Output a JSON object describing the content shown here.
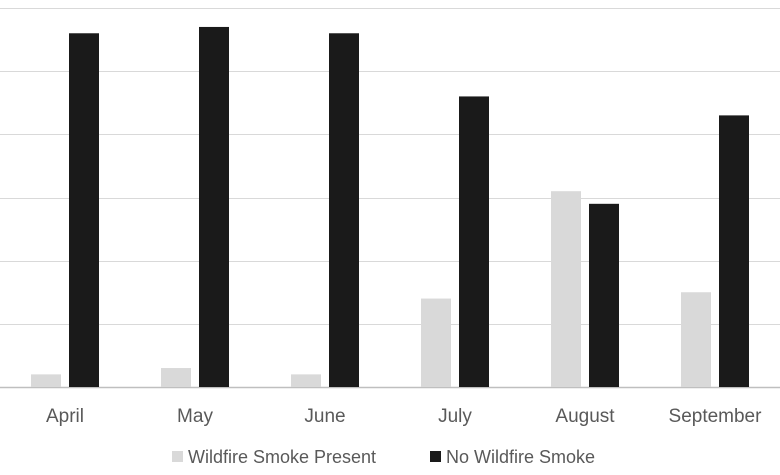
{
  "chart_data": {
    "type": "bar",
    "categories": [
      "April",
      "May",
      "June",
      "July",
      "August",
      "September"
    ],
    "series": [
      {
        "name": "Wildfire Smoke Present",
        "values": [
          0.2,
          0.3,
          0.2,
          1.4,
          3.1,
          1.5
        ]
      },
      {
        "name": "No Wildfire Smoke",
        "values": [
          5.6,
          5.7,
          5.6,
          4.6,
          2.9,
          4.3
        ]
      }
    ],
    "ylim": [
      0,
      6
    ],
    "yticks": [
      0,
      1,
      2,
      3,
      4,
      5,
      6
    ],
    "grid": true,
    "legend_position": "bottom-center",
    "colors": {
      "Wildfire Smoke Present": "#d9d9d9",
      "No Wildfire Smoke": "#1a1a1a"
    }
  }
}
